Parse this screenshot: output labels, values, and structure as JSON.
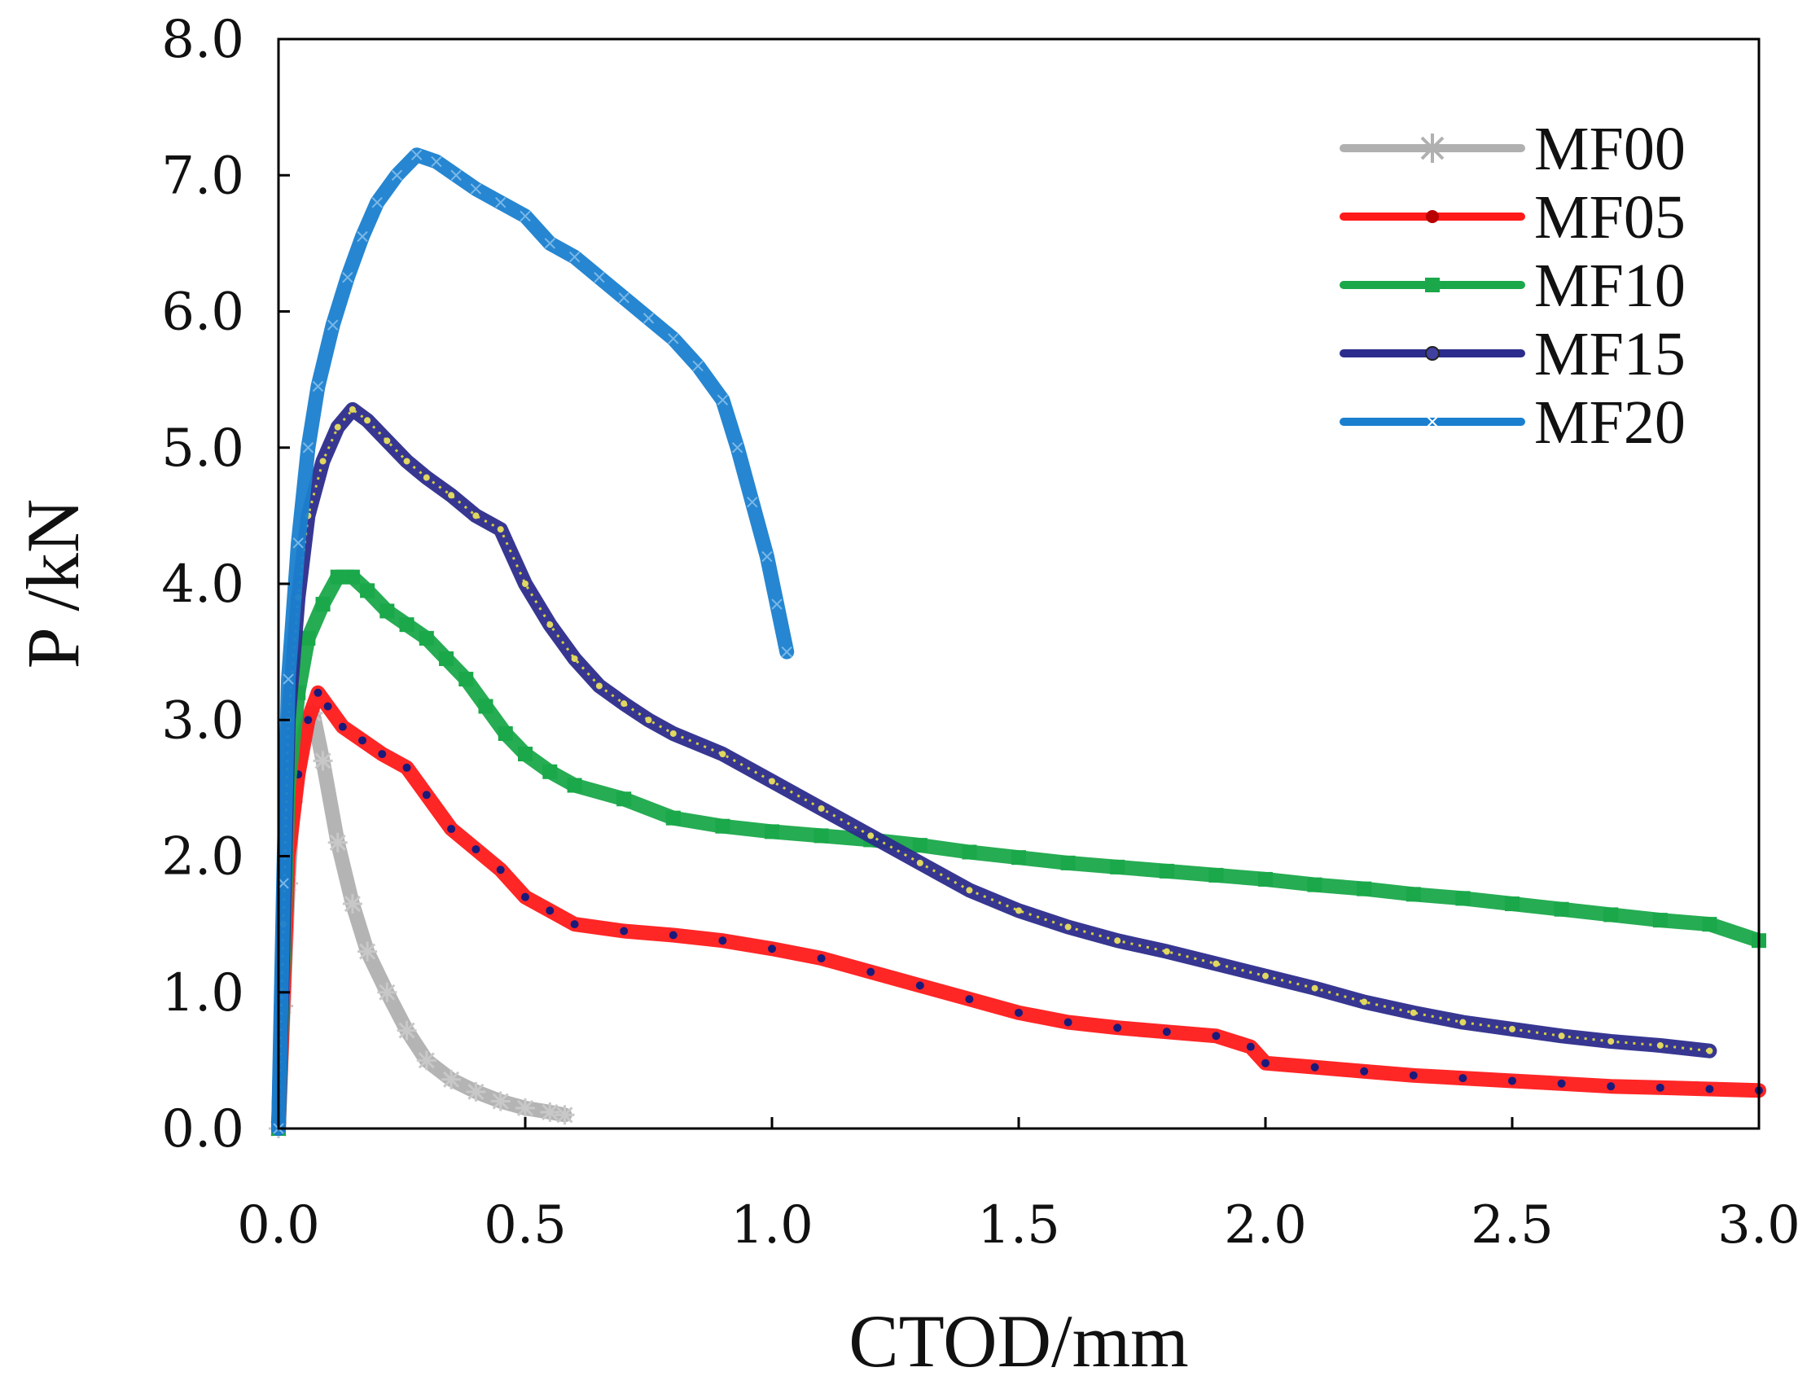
{
  "chart_data": {
    "type": "line",
    "title": "",
    "xlabel": "CTOD/mm",
    "ylabel": "P /kN",
    "xlim": [
      0.0,
      3.0
    ],
    "ylim": [
      0.0,
      8.0
    ],
    "xticks": [
      "0.0",
      "0.5",
      "1.0",
      "1.5",
      "2.0",
      "2.5",
      "3.0"
    ],
    "yticks": [
      "0.0",
      "1.0",
      "2.0",
      "3.0",
      "4.0",
      "5.0",
      "6.0",
      "7.0",
      "8.0"
    ],
    "grid": false,
    "legend_position": "top-right",
    "series": [
      {
        "name": "MF00",
        "color": "#b0b0b0",
        "marker": "star",
        "x": [
          0.0,
          0.01,
          0.02,
          0.03,
          0.05,
          0.07,
          0.09,
          0.12,
          0.15,
          0.18,
          0.22,
          0.26,
          0.3,
          0.35,
          0.4,
          0.45,
          0.5,
          0.55,
          0.58
        ],
        "y": [
          0.0,
          0.9,
          1.8,
          2.4,
          2.9,
          3.05,
          2.7,
          2.1,
          1.65,
          1.3,
          1.0,
          0.72,
          0.5,
          0.36,
          0.27,
          0.2,
          0.15,
          0.12,
          0.1
        ]
      },
      {
        "name": "MF05",
        "color": "#ff1a1a",
        "marker": "dot",
        "x": [
          0.0,
          0.01,
          0.02,
          0.04,
          0.06,
          0.08,
          0.1,
          0.13,
          0.17,
          0.21,
          0.26,
          0.3,
          0.35,
          0.4,
          0.45,
          0.5,
          0.55,
          0.6,
          0.7,
          0.8,
          0.9,
          1.0,
          1.1,
          1.2,
          1.3,
          1.4,
          1.5,
          1.6,
          1.7,
          1.8,
          1.9,
          1.97,
          2.0,
          2.1,
          2.2,
          2.3,
          2.4,
          2.5,
          2.6,
          2.7,
          2.8,
          2.9,
          3.0
        ],
        "y": [
          0.0,
          1.0,
          2.0,
          2.6,
          3.0,
          3.2,
          3.1,
          2.95,
          2.85,
          2.75,
          2.65,
          2.45,
          2.2,
          2.05,
          1.9,
          1.7,
          1.6,
          1.5,
          1.45,
          1.42,
          1.38,
          1.32,
          1.25,
          1.15,
          1.05,
          0.95,
          0.85,
          0.78,
          0.74,
          0.71,
          0.68,
          0.6,
          0.48,
          0.45,
          0.42,
          0.39,
          0.37,
          0.35,
          0.33,
          0.31,
          0.3,
          0.29,
          0.28
        ]
      },
      {
        "name": "MF10",
        "color": "#1aa84a",
        "marker": "square",
        "x": [
          0.0,
          0.01,
          0.02,
          0.04,
          0.06,
          0.09,
          0.12,
          0.15,
          0.18,
          0.22,
          0.26,
          0.3,
          0.34,
          0.38,
          0.42,
          0.46,
          0.5,
          0.55,
          0.6,
          0.7,
          0.8,
          0.9,
          1.0,
          1.1,
          1.2,
          1.3,
          1.4,
          1.5,
          1.6,
          1.7,
          1.8,
          1.9,
          2.0,
          2.1,
          2.2,
          2.3,
          2.4,
          2.5,
          2.6,
          2.7,
          2.8,
          2.9,
          3.0
        ],
        "y": [
          0.0,
          1.3,
          2.5,
          3.2,
          3.6,
          3.85,
          4.05,
          4.05,
          3.95,
          3.8,
          3.7,
          3.6,
          3.45,
          3.3,
          3.1,
          2.9,
          2.75,
          2.62,
          2.52,
          2.42,
          2.28,
          2.22,
          2.18,
          2.15,
          2.12,
          2.08,
          2.03,
          1.99,
          1.95,
          1.92,
          1.89,
          1.86,
          1.83,
          1.79,
          1.76,
          1.72,
          1.69,
          1.65,
          1.61,
          1.57,
          1.53,
          1.5,
          1.38
        ]
      },
      {
        "name": "MF15",
        "color": "#2c2c8c",
        "marker": "triangle",
        "x": [
          0.0,
          0.01,
          0.02,
          0.04,
          0.06,
          0.09,
          0.12,
          0.15,
          0.18,
          0.22,
          0.26,
          0.3,
          0.35,
          0.4,
          0.45,
          0.5,
          0.55,
          0.6,
          0.65,
          0.7,
          0.75,
          0.8,
          0.9,
          1.0,
          1.1,
          1.2,
          1.3,
          1.4,
          1.5,
          1.6,
          1.7,
          1.8,
          1.9,
          2.0,
          2.1,
          2.2,
          2.3,
          2.4,
          2.5,
          2.6,
          2.7,
          2.8,
          2.9
        ],
        "y": [
          0.0,
          1.5,
          3.0,
          3.9,
          4.5,
          4.9,
          5.15,
          5.28,
          5.2,
          5.05,
          4.9,
          4.78,
          4.65,
          4.5,
          4.4,
          4.0,
          3.7,
          3.45,
          3.25,
          3.12,
          3.0,
          2.9,
          2.75,
          2.55,
          2.35,
          2.15,
          1.95,
          1.75,
          1.6,
          1.48,
          1.38,
          1.3,
          1.21,
          1.12,
          1.03,
          0.93,
          0.85,
          0.78,
          0.73,
          0.68,
          0.64,
          0.61,
          0.57
        ]
      },
      {
        "name": "MF20",
        "color": "#1a7fcf",
        "marker": "x",
        "x": [
          0.0,
          0.01,
          0.02,
          0.04,
          0.06,
          0.08,
          0.11,
          0.14,
          0.17,
          0.2,
          0.24,
          0.28,
          0.32,
          0.36,
          0.4,
          0.45,
          0.5,
          0.55,
          0.6,
          0.65,
          0.7,
          0.75,
          0.8,
          0.85,
          0.9,
          0.93,
          0.96,
          0.99,
          1.01,
          1.03
        ],
        "y": [
          0.0,
          1.8,
          3.3,
          4.3,
          5.0,
          5.45,
          5.9,
          6.25,
          6.55,
          6.8,
          7.0,
          7.15,
          7.1,
          7.0,
          6.9,
          6.8,
          6.7,
          6.5,
          6.4,
          6.25,
          6.1,
          5.95,
          5.8,
          5.6,
          5.35,
          5.0,
          4.6,
          4.2,
          3.85,
          3.5
        ]
      }
    ]
  }
}
